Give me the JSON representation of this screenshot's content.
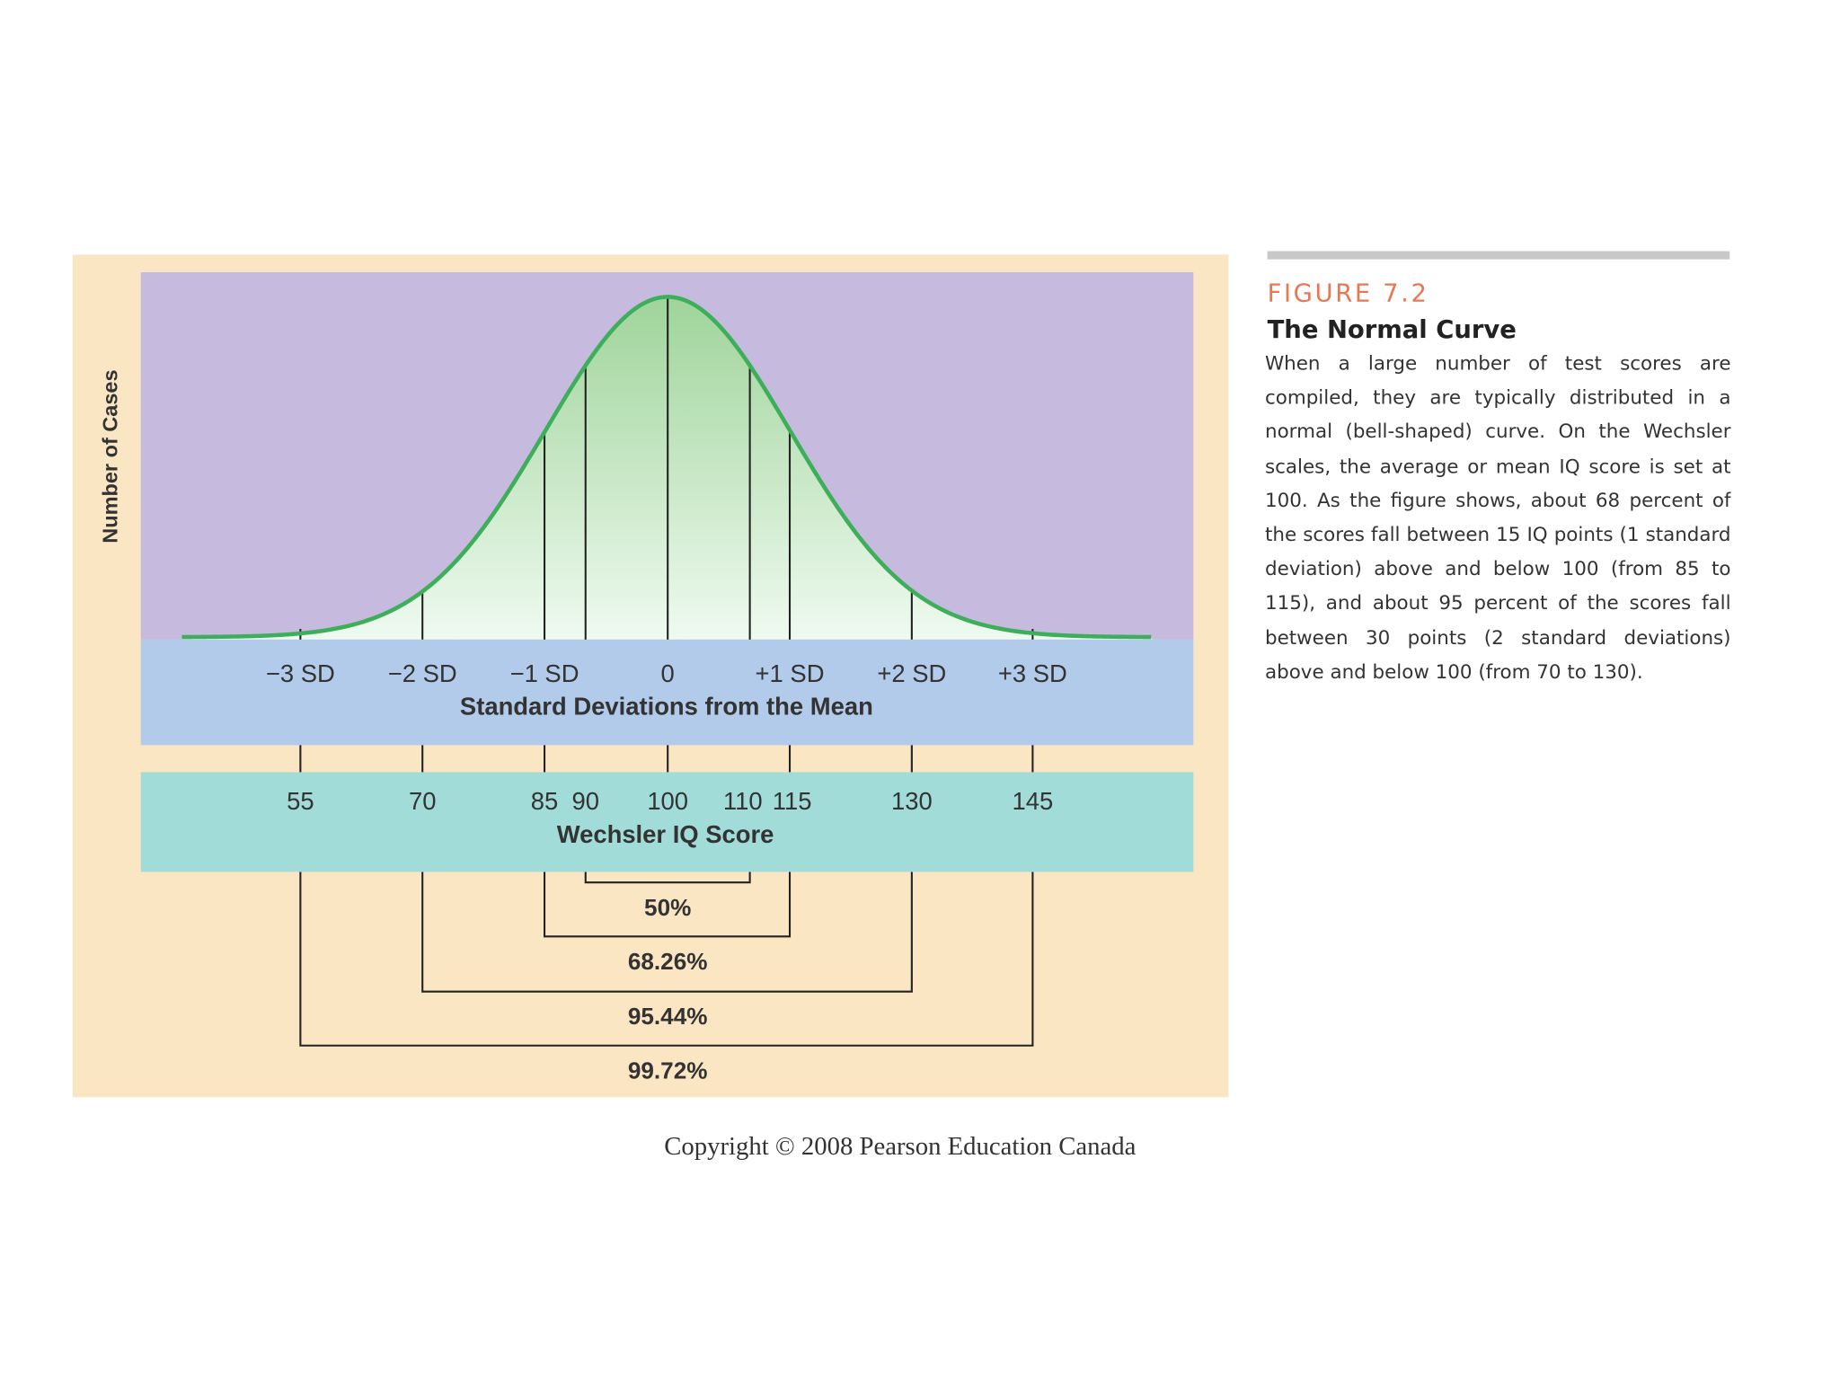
{
  "figure": {
    "y_axis_label": "Number of Cases",
    "sd_ticks": [
      "−3 SD",
      "−2 SD",
      "−1 SD",
      "0",
      "+1 SD",
      "+2 SD",
      "+3 SD"
    ],
    "sd_axis_title": "Standard Deviations from the Mean",
    "iq_ticks": [
      "55",
      "70",
      "85",
      "90",
      "100",
      "110",
      "115",
      "130",
      "145"
    ],
    "iq_axis_title": "Wechsler IQ Score",
    "ranges": [
      "50%",
      "68.26%",
      "95.44%",
      "99.72%"
    ]
  },
  "caption": {
    "label": "FIGURE 7.2",
    "title": "The Normal Curve",
    "text": "When a large number of test scores are compiled, they are typically distributed in a normal (bell-shaped) curve. On the Wechsler scales, the average or mean IQ score is set at 100. As the figure shows, about 68 percent of the scores fall between 15 IQ points (1 standard deviation) above and below 100 (from 85 to 115), and about 95 percent of the scores fall between 30 points (2 standard deviations) above and below 100 (from 70 to 130)."
  },
  "copyright": "Copyright © 2008 Pearson Education Canada"
}
